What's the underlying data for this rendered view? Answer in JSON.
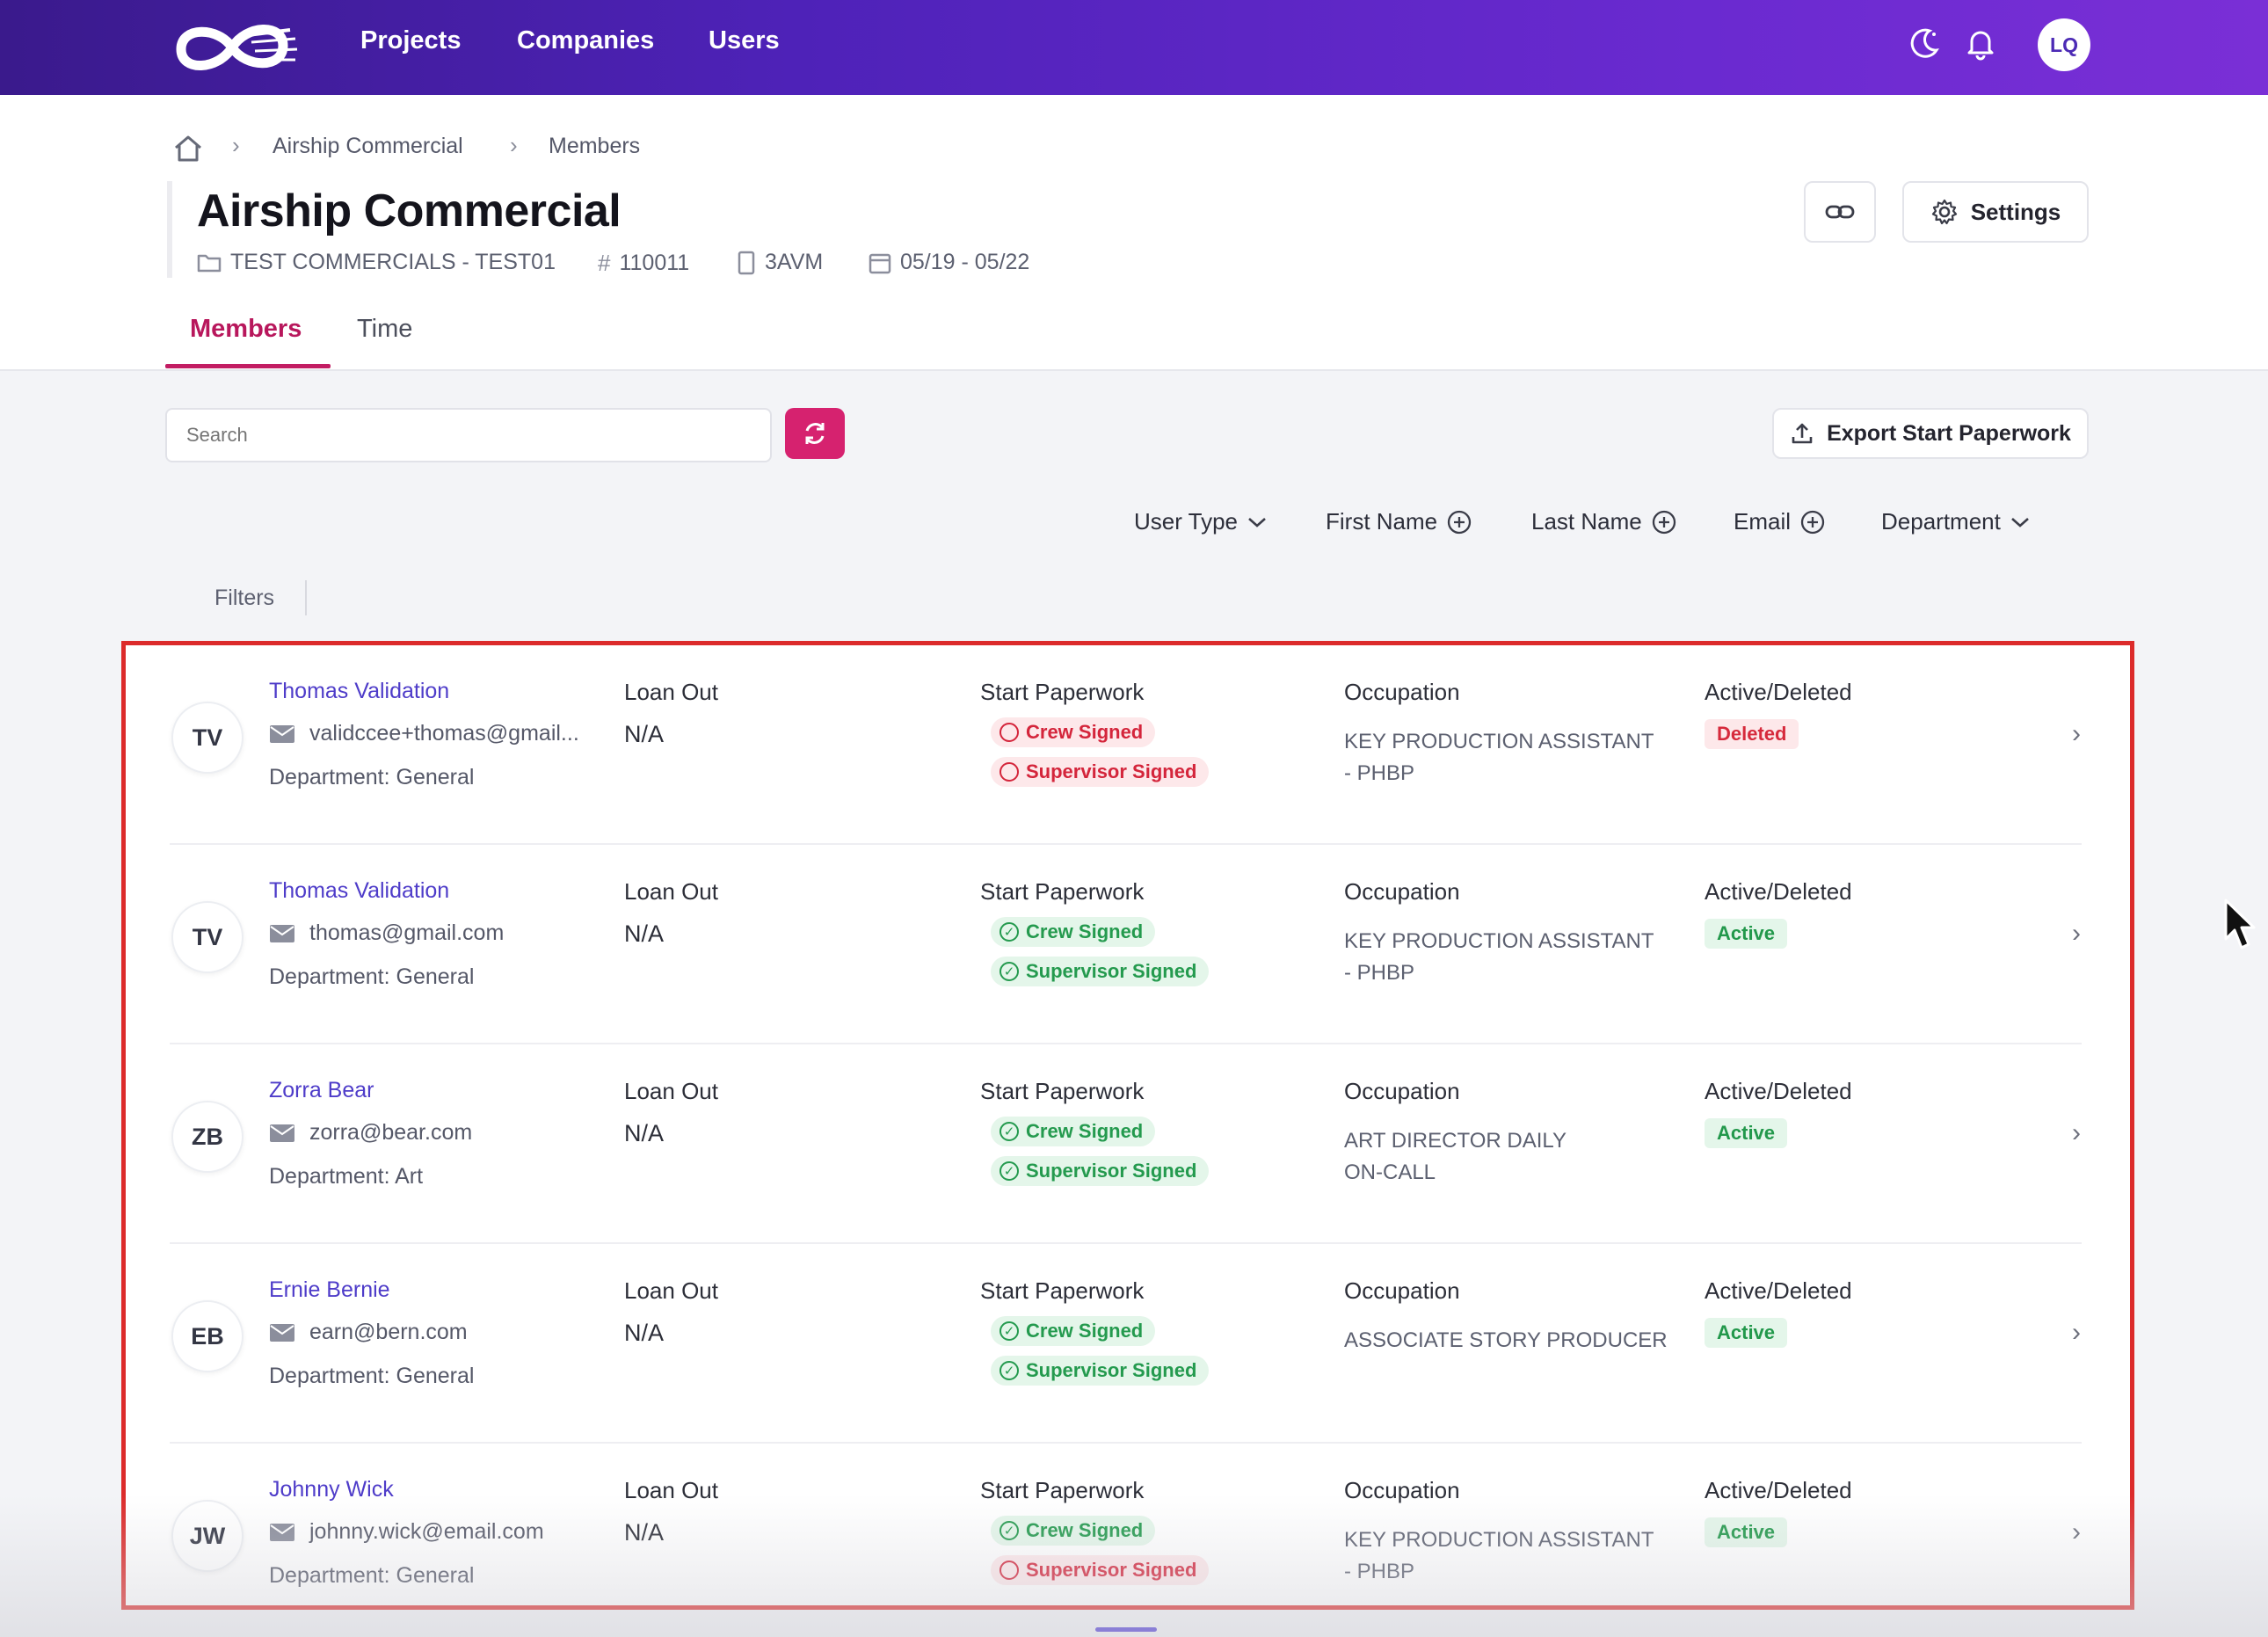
{
  "nav": {
    "links": [
      "Projects",
      "Companies",
      "Users"
    ],
    "user_initials": "LQ",
    "icons": [
      "logo-mark",
      "moon-icon",
      "bell-icon"
    ]
  },
  "breadcrumb": [
    "Airship Commercial",
    "Members"
  ],
  "header": {
    "title": "Airship Commercial",
    "meta": {
      "project": "TEST COMMERCIALS - TEST01",
      "number": "110011",
      "code": "3AVM",
      "dates": "05/19 - 05/22"
    },
    "settings_label": "Settings"
  },
  "tabs": [
    "Members",
    "Time"
  ],
  "toolbar": {
    "search_placeholder": "Search",
    "export_label": "Export Start Paperwork"
  },
  "sort": {
    "user_type": "User Type",
    "first_name": "First Name",
    "last_name": "Last Name",
    "email": "Email",
    "department": "Department"
  },
  "filters_label": "Filters",
  "columns": {
    "loan_out": "Loan Out",
    "start_paperwork": "Start Paperwork",
    "occupation": "Occupation",
    "active_deleted": "Active/Deleted"
  },
  "members": [
    {
      "initials": "TV",
      "name": "Thomas Validation",
      "email": "validccee+thomas@gmail...",
      "department": "Department: General",
      "loan_out": "N/A",
      "crew": "Crew Signed",
      "crew_ok": false,
      "supervisor": "Supervisor Signed",
      "supervisor_ok": false,
      "occupation_1": "KEY PRODUCTION ASSISTANT",
      "occupation_2": "- PHBP",
      "status": "Deleted"
    },
    {
      "initials": "TV",
      "name": "Thomas Validation",
      "email": "thomas@gmail.com",
      "department": "Department: General",
      "loan_out": "N/A",
      "crew": "Crew Signed",
      "crew_ok": true,
      "supervisor": "Supervisor Signed",
      "supervisor_ok": true,
      "occupation_1": "KEY PRODUCTION ASSISTANT",
      "occupation_2": "- PHBP",
      "status": "Active"
    },
    {
      "initials": "ZB",
      "name": "Zorra Bear",
      "email": "zorra@bear.com",
      "department": "Department: Art",
      "loan_out": "N/A",
      "crew": "Crew Signed",
      "crew_ok": true,
      "supervisor": "Supervisor Signed",
      "supervisor_ok": true,
      "occupation_1": "ART DIRECTOR DAILY",
      "occupation_2": "ON-CALL",
      "status": "Active"
    },
    {
      "initials": "EB",
      "name": "Ernie Bernie",
      "email": "earn@bern.com",
      "department": "Department: General",
      "loan_out": "N/A",
      "crew": "Crew Signed",
      "crew_ok": true,
      "supervisor": "Supervisor Signed",
      "supervisor_ok": true,
      "occupation_1": "ASSOCIATE STORY PRODUCER",
      "occupation_2": "",
      "status": "Active"
    },
    {
      "initials": "JW",
      "name": "Johnny Wick",
      "email": "johnny.wick@email.com",
      "department": "Department: General",
      "loan_out": "N/A",
      "crew": "Crew Signed",
      "crew_ok": true,
      "supervisor": "Supervisor Signed",
      "supervisor_ok": false,
      "occupation_1": "KEY PRODUCTION ASSISTANT",
      "occupation_2": "- PHBP",
      "status": "Active"
    }
  ],
  "colors": {
    "accent": "#d6226f",
    "link": "#4e3cc9",
    "highlight_border": "#dc2b2b"
  }
}
